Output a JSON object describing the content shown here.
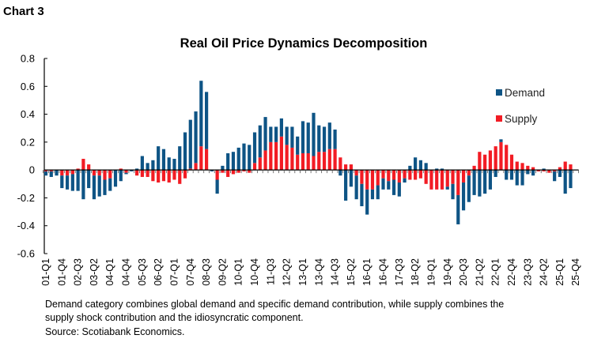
{
  "header": {
    "chart_label": "Chart 3"
  },
  "colors": {
    "demand": "#0e5485",
    "supply": "#f21c24",
    "axis": "#000000"
  },
  "footnote": {
    "line1": "Demand category combines global demand and specific demand contribution, while supply combines the",
    "line2": "supply shock contribution and the idiosyncratic component.",
    "source": "Source: Scotiabank Economics."
  },
  "chart_data": {
    "type": "bar",
    "stacked": true,
    "title": "Real Oil Price Dynamics Decomposition",
    "xlabel": "",
    "ylabel": "",
    "ylim": [
      -0.6,
      0.8
    ],
    "yticks": [
      "0.8",
      "0.6",
      "0.4",
      "0.2",
      "0",
      "-0.2",
      "-0.4",
      "-0.6"
    ],
    "ytick_values": [
      0.8,
      0.6,
      0.4,
      0.2,
      0,
      -0.2,
      -0.4,
      -0.6
    ],
    "grid": false,
    "legend_position": "right",
    "xtick_labels": [
      "01-Q1",
      "01-Q4",
      "02-Q3",
      "03-Q2",
      "04-Q1",
      "04-Q4",
      "05-Q3",
      "06-Q2",
      "07-Q1",
      "07-Q4",
      "08-Q3",
      "09-Q2",
      "10-Q1",
      "10-Q4",
      "11-Q3",
      "12-Q2",
      "13-Q1",
      "13-Q4",
      "14-Q3",
      "15-Q2",
      "16-Q1",
      "16-Q4",
      "17-Q3",
      "18-Q2",
      "19-Q1",
      "19-Q4",
      "20-Q3",
      "21-Q2",
      "22-Q1",
      "22-Q4",
      "23-Q3",
      "24-Q2",
      "25-Q1",
      "25-Q4"
    ],
    "categories_from": "01-Q1",
    "categories_to": "25-Q4",
    "series": [
      {
        "name": "Demand",
        "values": [
          -0.03,
          -0.04,
          -0.04,
          -0.09,
          -0.1,
          -0.12,
          -0.15,
          -0.21,
          -0.13,
          -0.17,
          -0.15,
          -0.11,
          -0.09,
          -0.12,
          -0.08,
          -0.01,
          -0.01,
          0.01,
          0.1,
          0.05,
          0.07,
          0.17,
          0.15,
          0.09,
          0.08,
          0.17,
          0.27,
          0.35,
          0.37,
          0.47,
          0.41,
          -0.01,
          -0.1,
          0.03,
          0.12,
          0.13,
          0.16,
          0.19,
          0.18,
          0.22,
          0.23,
          0.24,
          0.11,
          0.11,
          0.13,
          0.13,
          0.15,
          0.13,
          0.23,
          0.22,
          0.31,
          0.19,
          0.18,
          0.19,
          0.14,
          -0.04,
          -0.22,
          -0.12,
          -0.17,
          -0.16,
          -0.18,
          -0.07,
          -0.1,
          -0.08,
          -0.06,
          -0.11,
          -0.1,
          -0.03,
          0.03,
          0.09,
          0.07,
          0.05,
          0.0,
          0.01,
          0.01,
          -0.02,
          -0.11,
          -0.21,
          -0.2,
          -0.19,
          -0.18,
          -0.19,
          -0.17,
          -0.14,
          -0.05,
          0.02,
          -0.07,
          -0.07,
          -0.11,
          -0.11,
          -0.03,
          -0.04,
          0.0,
          0.01,
          0.0,
          -0.07,
          -0.05,
          -0.17,
          -0.13,
          null
        ]
      },
      {
        "name": "Supply",
        "values": [
          -0.01,
          -0.01,
          0.0,
          -0.04,
          -0.04,
          -0.03,
          0.01,
          0.08,
          0.04,
          -0.04,
          -0.04,
          -0.07,
          -0.06,
          0.0,
          0.01,
          -0.02,
          0.0,
          -0.04,
          -0.05,
          -0.05,
          -0.08,
          -0.09,
          -0.08,
          -0.09,
          -0.07,
          -0.1,
          -0.06,
          0.01,
          0.05,
          0.17,
          0.15,
          0.0,
          -0.07,
          -0.02,
          -0.05,
          -0.03,
          -0.02,
          -0.01,
          -0.02,
          0.05,
          0.09,
          0.14,
          0.2,
          0.2,
          0.24,
          0.18,
          0.16,
          0.11,
          0.12,
          0.12,
          0.1,
          0.13,
          0.13,
          0.15,
          0.15,
          0.09,
          0.04,
          0.04,
          -0.04,
          -0.1,
          -0.14,
          -0.14,
          -0.11,
          -0.06,
          -0.08,
          -0.07,
          -0.09,
          -0.06,
          -0.07,
          -0.07,
          -0.06,
          -0.1,
          -0.14,
          -0.14,
          -0.14,
          -0.12,
          -0.1,
          -0.18,
          -0.09,
          -0.04,
          0.03,
          0.13,
          0.11,
          0.14,
          0.17,
          0.2,
          0.18,
          0.11,
          0.06,
          0.05,
          0.03,
          0.02,
          -0.01,
          -0.01,
          -0.02,
          -0.01,
          0.02,
          0.06,
          0.04,
          null
        ]
      }
    ]
  }
}
